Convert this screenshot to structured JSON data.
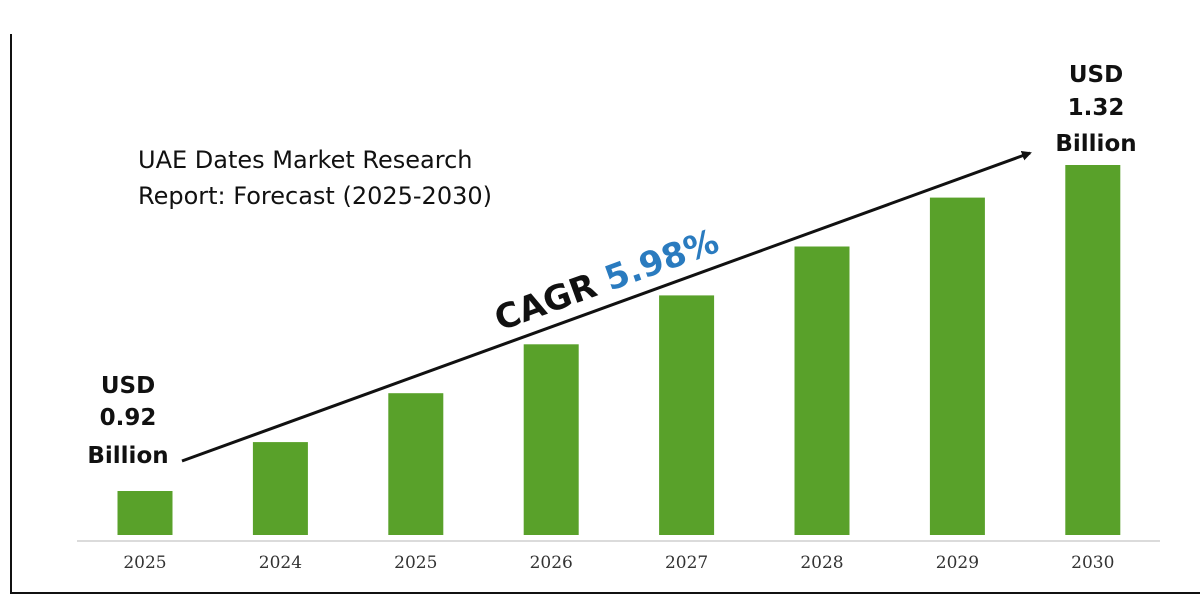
{
  "chart_data": {
    "type": "bar",
    "title_lines": [
      "UAE Dates Market Research",
      "Report: Forecast (2025-2030)"
    ],
    "categories": [
      "2025",
      "2024",
      "2025",
      "2026",
      "2027",
      "2028",
      "2029",
      "2030"
    ],
    "values": [
      0.92,
      0.98,
      1.04,
      1.1,
      1.16,
      1.22,
      1.28,
      1.32
    ],
    "start_label": [
      "USD",
      "0.92",
      "Billion"
    ],
    "end_label": [
      "USD",
      "1.32",
      "Billion"
    ],
    "cagr": {
      "prefix": "CAGR",
      "value": "5.98%"
    },
    "bar_color": "#59a12a",
    "cagr_color": "#2a7bbf",
    "grid": false,
    "legend": "none"
  }
}
